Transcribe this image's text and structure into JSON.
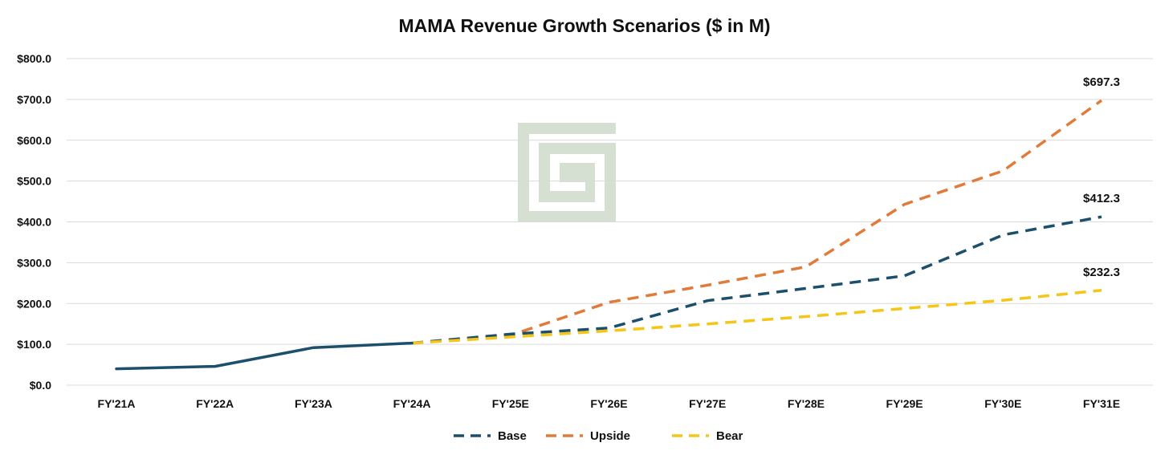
{
  "chart_data": {
    "type": "line",
    "title": "MAMA Revenue Growth Scenarios ($ in M)",
    "xlabel": "",
    "ylabel": "",
    "ylim": [
      0,
      800
    ],
    "yticks": [
      0,
      100,
      200,
      300,
      400,
      500,
      600,
      700,
      800
    ],
    "ytick_labels": [
      "$0.0",
      "$100.0",
      "$200.0",
      "$300.0",
      "$400.0",
      "$500.0",
      "$600.0",
      "$700.0",
      "$800.0"
    ],
    "grid": true,
    "legend_position": "bottom-center",
    "categories": [
      "FY'21A",
      "FY'22A",
      "FY'23A",
      "FY'24A",
      "FY'25E",
      "FY'26E",
      "FY'27E",
      "FY'28E",
      "FY'29E",
      "FY'30E",
      "FY'31E"
    ],
    "actual": {
      "color": "#1b4f6b",
      "values": [
        40,
        46,
        92,
        103,
        null,
        null,
        null,
        null,
        null,
        null,
        null
      ]
    },
    "series": [
      {
        "name": "Base",
        "color": "#1b4f6b",
        "values": [
          null,
          null,
          null,
          103,
          125,
          140,
          207,
          237,
          268,
          368,
          412.3
        ]
      },
      {
        "name": "Upside",
        "color": "#e07b39",
        "values": [
          null,
          null,
          null,
          103,
          122,
          203,
          245,
          290,
          443,
          525,
          697.3
        ]
      },
      {
        "name": "Bear",
        "color": "#f5c518",
        "values": [
          null,
          null,
          null,
          103,
          118,
          133,
          150,
          168,
          188,
          208,
          232.3
        ]
      }
    ],
    "end_labels": [
      {
        "series": "Upside",
        "text": "$697.3"
      },
      {
        "series": "Base",
        "text": "$412.3"
      },
      {
        "series": "Bear",
        "text": "$232.3"
      }
    ],
    "watermark_color": "#d6e0d2"
  }
}
